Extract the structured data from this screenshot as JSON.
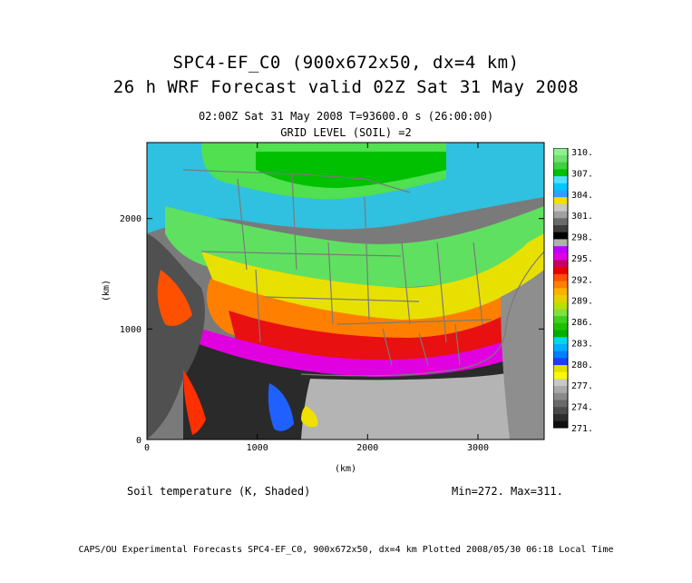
{
  "header": {
    "title_line1": "SPC4-EF_C0 (900x672x50, dx=4 km)",
    "title_line2": "26 h WRF Forecast valid 02Z Sat 31 May 2008",
    "time_line": "02:00Z Sat 31 May 2008    T=93600.0 s (26:00:00)",
    "grid_level": "GRID LEVEL (SOIL) =2"
  },
  "map": {
    "x_axis": {
      "label": "(km)",
      "ticks": [
        "0",
        "1000",
        "2000",
        "3000"
      ]
    },
    "y_axis": {
      "label": "(km)",
      "ticks": [
        "0",
        "1000",
        "2000"
      ]
    },
    "x_range_km": [
      0,
      3600
    ],
    "y_range_km": [
      0,
      2688
    ]
  },
  "colorbar": {
    "labels": [
      "310.",
      "307.",
      "304.",
      "301.",
      "298.",
      "295.",
      "292.",
      "289.",
      "286.",
      "283.",
      "280.",
      "277.",
      "274.",
      "271."
    ],
    "colors": [
      "#0f0f0f",
      "#2d2d2d",
      "#4b4b4b",
      "#6a6a6a",
      "#8a8a8a",
      "#aaaaaa",
      "#c8c8c8",
      "#f8f800",
      "#e0e000",
      "#1e3cff",
      "#0080ff",
      "#00b0ff",
      "#00d8e8",
      "#00b000",
      "#20c000",
      "#40d020",
      "#80e040",
      "#b8e000",
      "#e8d000",
      "#ffb000",
      "#ff8000",
      "#ff5000",
      "#e80000",
      "#c80060",
      "#e000e0",
      "#c000ff",
      "#b0b0b0",
      "#000000",
      "#3c3c3c",
      "#6a6a6a",
      "#a0a0a0",
      "#c8c8c8",
      "#f0e000",
      "#30a0ff",
      "#00c8ff",
      "#50e0ff",
      "#00c000",
      "#40d040",
      "#70e070",
      "#90f090"
    ]
  },
  "variable": "Soil temperature (K, Shaded)",
  "min_max": "Min=272. Max=311.",
  "footer": "CAPS/OU Experimental Forecasts  SPC4-EF_C0, 900x672x50, dx=4 km  Plotted 2008/05/30 06:18 Local Time"
}
